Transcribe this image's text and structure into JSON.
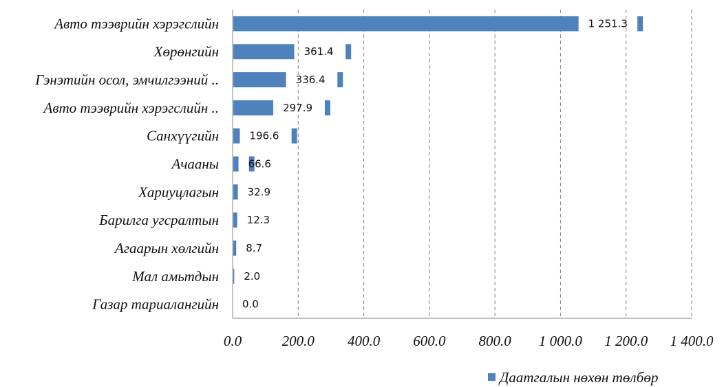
{
  "chart_data": {
    "type": "bar",
    "orientation": "horizontal",
    "categories": [
      "Авто тээврийн хэрэгслийн",
      "Хөрөнгийн",
      "Гэнэтийн осол, эмчилгээний ..",
      "Авто тээврийн хэрэгслийн ..",
      "Санхүүгийн",
      "Ачааны",
      "Хариуцлагын",
      "Барилга угсралтын",
      "Агаарын хөлгийн",
      "Мал амьтдын",
      "Газар тариалангийн"
    ],
    "series": [
      {
        "name": "Даатгалын нөхөн төлбөр",
        "values": [
          1251.3,
          361.4,
          336.4,
          297.9,
          196.6,
          66.6,
          32.9,
          12.3,
          8.7,
          2.0,
          0.0
        ],
        "main_values": [
          1055,
          188,
          163,
          124,
          22,
          18,
          16,
          14,
          11,
          5,
          0
        ],
        "value_labels": [
          "1 251.3",
          "361.4",
          "336.4",
          "297.9",
          "196.6",
          "66.6",
          "32.9",
          "12.3",
          "8.7",
          "2.0",
          "0.0"
        ]
      }
    ],
    "xlim": [
      0,
      1400
    ],
    "x_ticks": [
      0,
      200,
      400,
      600,
      800,
      1000,
      1200,
      1400
    ],
    "x_tick_labels": [
      "0.0",
      "200.0",
      "400.0",
      "600.0",
      "800.0",
      "1 000.0",
      "1 200.0",
      "1 400.0"
    ],
    "grid": "vertical-dashed",
    "legend": "bottom-right",
    "colors": {
      "bar": "#4f81bd",
      "grid": "#7f7f7f",
      "axis": "#868686"
    }
  }
}
